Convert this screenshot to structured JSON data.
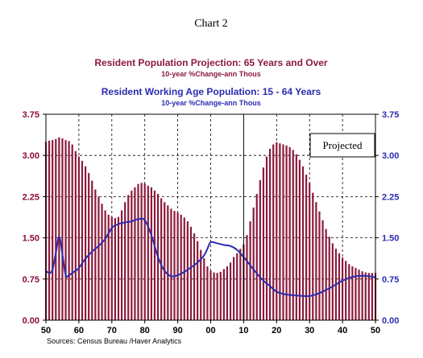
{
  "chart_data": {
    "type": "bar",
    "caption": "Chart 2",
    "title_1": "Resident Population Projection: 65 Years and Over",
    "subtitle_1": "10-year %Change-ann      Thous",
    "title_2": "Resident Working Age Population: 15 - 64 Years",
    "subtitle_2": "10-year %Change-ann      Thous",
    "annotation": "Projected",
    "source": "Sources:  Census Bureau /Haver Analytics",
    "ylim": [
      0,
      3.75
    ],
    "y_ticks": [
      "3.75",
      "3.00",
      "2.25",
      "1.50",
      "0.75",
      "0.00"
    ],
    "y_tick_values": [
      3.75,
      3.0,
      2.25,
      1.5,
      0.75,
      0.0
    ],
    "x_tick_labels": [
      "50",
      "60",
      "70",
      "80",
      "90",
      "00",
      "10",
      "20",
      "30",
      "40",
      "50"
    ],
    "x_tick_years": [
      1950,
      1960,
      1970,
      1980,
      1990,
      2000,
      2010,
      2020,
      2030,
      2040,
      2050
    ],
    "xlim": [
      1950,
      2050
    ],
    "projection_start": 2010,
    "grid": true,
    "series": [
      {
        "type": "bar",
        "color": "#8B1A3C",
        "x": [
          1950,
          1951,
          1952,
          1953,
          1954,
          1955,
          1956,
          1957,
          1958,
          1959,
          1960,
          1961,
          1962,
          1963,
          1964,
          1965,
          1966,
          1967,
          1968,
          1969,
          1970,
          1971,
          1972,
          1973,
          1974,
          1975,
          1976,
          1977,
          1978,
          1979,
          1980,
          1981,
          1982,
          1983,
          1984,
          1985,
          1986,
          1987,
          1988,
          1989,
          1990,
          1991,
          1992,
          1993,
          1994,
          1995,
          1996,
          1997,
          1998,
          1999,
          2000,
          2001,
          2002,
          2003,
          2004,
          2005,
          2006,
          2007,
          2008,
          2009,
          2010,
          2011,
          2012,
          2013,
          2014,
          2015,
          2016,
          2017,
          2018,
          2019,
          2020,
          2021,
          2022,
          2023,
          2024,
          2025,
          2026,
          2027,
          2028,
          2029,
          2030,
          2031,
          2032,
          2033,
          2034,
          2035,
          2036,
          2037,
          2038,
          2039,
          2040,
          2041,
          2042,
          2043,
          2044,
          2045,
          2046,
          2047,
          2048,
          2049,
          2050
        ],
        "values": [
          3.25,
          3.27,
          3.28,
          3.3,
          3.33,
          3.31,
          3.28,
          3.26,
          3.2,
          3.08,
          2.98,
          2.9,
          2.8,
          2.68,
          2.54,
          2.38,
          2.25,
          2.12,
          2.0,
          1.92,
          1.88,
          1.86,
          1.88,
          2.0,
          2.15,
          2.28,
          2.36,
          2.42,
          2.48,
          2.5,
          2.49,
          2.45,
          2.42,
          2.36,
          2.3,
          2.22,
          2.15,
          2.09,
          2.03,
          1.99,
          1.96,
          1.92,
          1.87,
          1.8,
          1.7,
          1.58,
          1.44,
          1.28,
          1.13,
          0.98,
          0.9,
          0.87,
          0.86,
          0.88,
          0.93,
          0.98,
          1.05,
          1.15,
          1.22,
          1.3,
          1.38,
          1.55,
          1.8,
          2.05,
          2.3,
          2.55,
          2.78,
          2.98,
          3.12,
          3.2,
          3.24,
          3.22,
          3.2,
          3.18,
          3.15,
          3.1,
          3.02,
          2.92,
          2.8,
          2.65,
          2.5,
          2.32,
          2.15,
          1.98,
          1.82,
          1.66,
          1.52,
          1.4,
          1.3,
          1.22,
          1.14,
          1.08,
          1.02,
          0.98,
          0.95,
          0.92,
          0.89,
          0.87,
          0.86,
          0.86,
          0.86
        ]
      },
      {
        "type": "line",
        "color": "#2B2BB0",
        "x": [
          1950,
          1951,
          1952,
          1953,
          1954,
          1955,
          1956,
          1957,
          1958,
          1959,
          1960,
          1962,
          1964,
          1966,
          1968,
          1970,
          1972,
          1974,
          1976,
          1978,
          1980,
          1982,
          1984,
          1986,
          1988,
          1990,
          1992,
          1994,
          1996,
          1998,
          1999,
          2000,
          2002,
          2004,
          2006,
          2008,
          2010,
          2012,
          2014,
          2016,
          2018,
          2020,
          2022,
          2024,
          2026,
          2028,
          2030,
          2032,
          2034,
          2036,
          2038,
          2040,
          2042,
          2044,
          2046,
          2048,
          2050
        ],
        "values": [
          0.9,
          0.86,
          0.92,
          1.22,
          1.52,
          1.2,
          0.82,
          0.82,
          0.86,
          0.9,
          0.95,
          1.12,
          1.25,
          1.35,
          1.48,
          1.68,
          1.75,
          1.78,
          1.8,
          1.84,
          1.82,
          1.55,
          1.15,
          0.9,
          0.8,
          0.82,
          0.88,
          0.96,
          1.05,
          1.18,
          1.3,
          1.42,
          1.4,
          1.37,
          1.35,
          1.28,
          1.15,
          1.0,
          0.85,
          0.72,
          0.62,
          0.52,
          0.48,
          0.46,
          0.45,
          0.44,
          0.44,
          0.47,
          0.52,
          0.58,
          0.65,
          0.72,
          0.77,
          0.8,
          0.81,
          0.8,
          0.78
        ]
      }
    ]
  }
}
